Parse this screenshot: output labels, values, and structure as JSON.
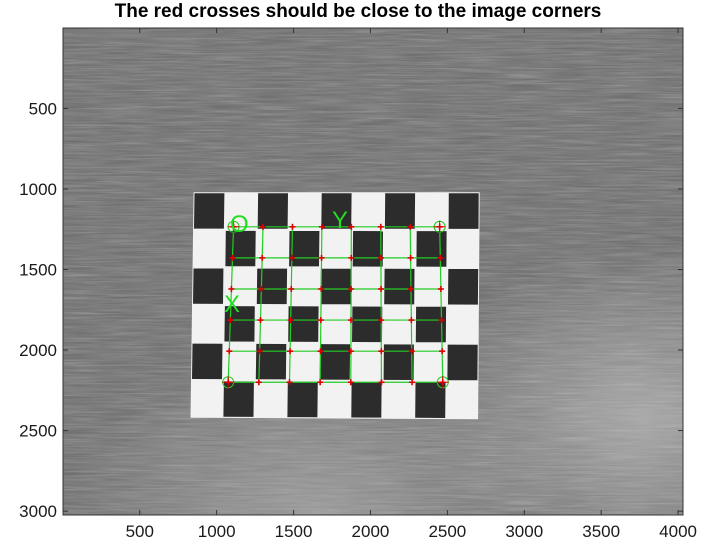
{
  "title": "The red crosses should be close to the image corners",
  "chart_data": {
    "type": "image",
    "title": "The red crosses should be close to the image corners",
    "xlim": [
      1,
      4032
    ],
    "ylim": [
      3024,
      1
    ],
    "x_ticks": [
      "500",
      "1000",
      "1500",
      "2000",
      "2500",
      "3000",
      "3500",
      "4000"
    ],
    "y_ticks": [
      "500",
      "1000",
      "1500",
      "2000",
      "2500",
      "3000"
    ],
    "colormap": "grayscale",
    "checkerboard": {
      "columns": 9,
      "rows": 6,
      "outer_corners": [
        [
          850,
          1020
        ],
        [
          2710,
          1020
        ],
        [
          2700,
          2430
        ],
        [
          830,
          2420
        ]
      ],
      "inner_grid_columns": 7,
      "inner_grid_rows": 5
    },
    "corner_markers": [
      {
        "name": "top-left",
        "x": 1110,
        "y": 1235
      },
      {
        "name": "top-right",
        "x": 2450,
        "y": 1235
      },
      {
        "name": "bottom-left",
        "x": 1075,
        "y": 2200
      },
      {
        "name": "bottom-right",
        "x": 2470,
        "y": 2200
      }
    ],
    "axis_labels": {
      "origin": "O",
      "x_direction": "X",
      "y_direction": "Y"
    },
    "colors": {
      "grid_line": "#22cc22",
      "corner_cross": "#dd0000",
      "marker_circle": "#22cc22",
      "axis_text": "#22dd22"
    }
  }
}
